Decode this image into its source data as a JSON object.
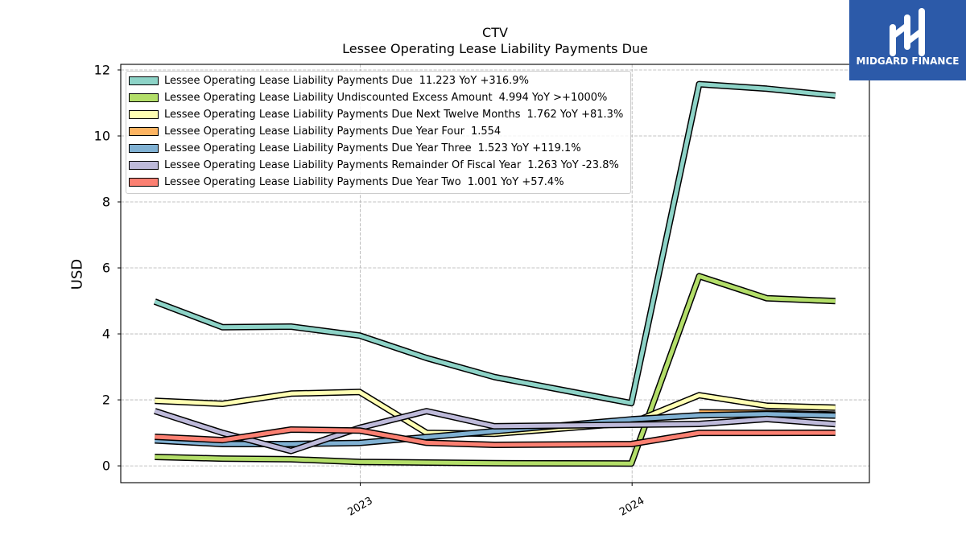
{
  "logo": {
    "text": "MIDGARD FINANCE",
    "background": "#2c5aa9"
  },
  "chart_data": {
    "type": "line",
    "title": "CTV",
    "subtitle": "Lessee Operating Lease Liability Payments Due",
    "xlabel": "",
    "ylabel": "USD",
    "ylim": [
      -0.51,
      12.17
    ],
    "yticks": [
      0,
      2,
      4,
      6,
      8,
      10,
      12
    ],
    "xticks": [
      "2023",
      "2024"
    ],
    "grid": true,
    "legend_position": "upper-left",
    "x": [
      "2022-03-31",
      "2022-06-30",
      "2022-09-30",
      "2022-12-31",
      "2023-03-31",
      "2023-06-30",
      "2023-12-31",
      "2024-03-31",
      "2024-06-30",
      "2024-09-30"
    ],
    "series": [
      {
        "name": "Lessee Operating Lease Liability Payments Due",
        "annotation": "11.223 YoY +316.9%",
        "color": "#8dd3c7",
        "values": [
          4.98,
          4.2,
          4.22,
          3.95,
          3.27,
          2.692,
          1.9,
          11.57,
          11.43,
          11.223
        ]
      },
      {
        "name": "Lessee Operating Lease Liability Undiscounted Excess Amount",
        "annotation": "4.994 YoY >+1000%",
        "color": "#b3de69",
        "values": [
          0.27,
          0.22,
          0.2,
          0.12,
          0.1,
          0.08,
          0.07,
          5.75,
          5.08,
          4.994
        ]
      },
      {
        "name": "Lessee Operating Lease Liability Payments Due Next Twelve Months",
        "annotation": "1.762 YoY +81.3%",
        "color": "#ffffb3",
        "values": [
          1.97,
          1.88,
          2.19,
          2.24,
          1.0,
          0.972,
          1.3,
          2.14,
          1.82,
          1.762
        ]
      },
      {
        "name": "Lessee Operating Lease Liability Payments Due Year Four",
        "annotation": "1.554",
        "color": "#fdb462",
        "values": [
          null,
          null,
          null,
          null,
          null,
          null,
          null,
          1.62,
          1.61,
          1.554
        ]
      },
      {
        "name": "Lessee Operating Lease Liability Payments Due Year Three",
        "annotation": "1.523 YoY +119.1%",
        "color": "#80b1d3",
        "values": [
          0.77,
          0.66,
          0.66,
          0.695,
          null,
          null,
          1.41,
          1.53,
          1.57,
          1.523
        ]
      },
      {
        "name": "Lessee Operating Lease Liability Payments Remainder Of Fiscal Year",
        "annotation": "1.263 YoY -23.8%",
        "color": "#bebada",
        "values": [
          1.66,
          1.0,
          0.45,
          1.15,
          1.657,
          1.2,
          null,
          1.27,
          1.42,
          1.263
        ]
      },
      {
        "name": "Lessee Operating Lease Liability Payments Due Year Two",
        "annotation": "1.001 YoY +57.4%",
        "color": "#fb8072",
        "values": [
          0.88,
          0.78,
          1.1,
          1.07,
          0.7,
          0.636,
          0.66,
          1.0,
          1.0,
          1.001
        ]
      }
    ]
  }
}
